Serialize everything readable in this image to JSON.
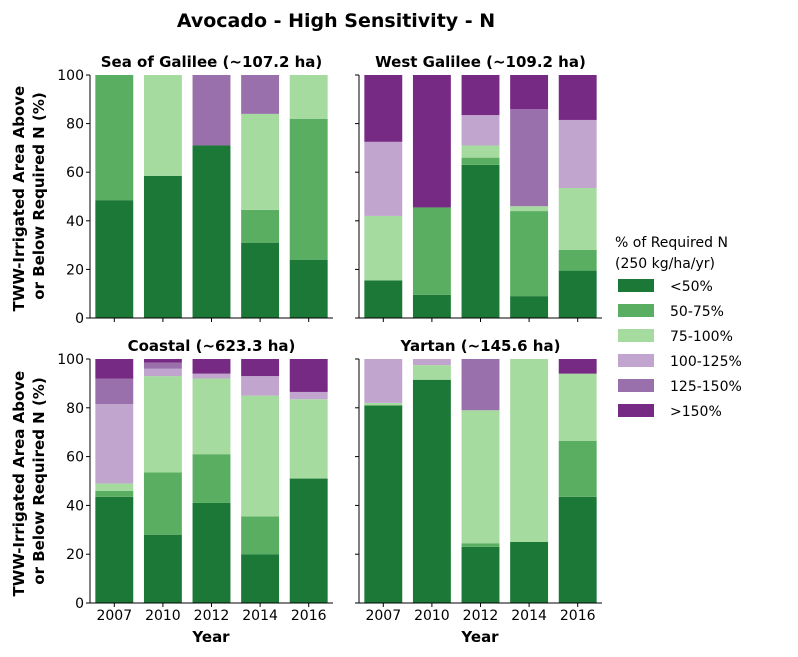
{
  "title": "Avocado - High Sensitivity - N",
  "ylabel_lines": [
    "TWW-Irrigated Area Above",
    "or Below Required N (%)"
  ],
  "xlabel": "Year",
  "legend": {
    "title_lines": [
      "% of Required N",
      "(250 kg/ha/yr)"
    ],
    "entries": [
      "<50%",
      "50-75%",
      "75-100%",
      "100-125%",
      "125-150%",
      ">150%"
    ]
  },
  "colors": [
    "#1b7837",
    "#5aae61",
    "#a6dba0",
    "#c2a5cf",
    "#9970ab",
    "#762a83"
  ],
  "chart_data": [
    {
      "type": "bar",
      "stacked": true,
      "title": "Sea of Galilee (~107.2 ha)",
      "categories": [
        "2007",
        "2010",
        "2012",
        "2014",
        "2016"
      ],
      "ylim": [
        0,
        100
      ],
      "yticks": [
        0,
        20,
        40,
        60,
        80,
        100
      ],
      "series": [
        {
          "name": "<50%",
          "values": [
            48.5,
            58.5,
            71,
            31,
            24
          ]
        },
        {
          "name": "50-75%",
          "values": [
            51.5,
            0,
            0,
            13.5,
            58
          ]
        },
        {
          "name": "75-100%",
          "values": [
            0,
            41.5,
            0,
            39.5,
            18
          ]
        },
        {
          "name": "100-125%",
          "values": [
            0,
            0,
            0,
            0,
            0
          ]
        },
        {
          "name": "125-150%",
          "values": [
            0,
            0,
            29,
            16,
            0
          ]
        },
        {
          "name": ">150%",
          "values": [
            0,
            0,
            0,
            0,
            0
          ]
        }
      ]
    },
    {
      "type": "bar",
      "stacked": true,
      "title": "West Galilee (~109.2 ha)",
      "categories": [
        "2007",
        "2010",
        "2012",
        "2014",
        "2016"
      ],
      "ylim": [
        0,
        100
      ],
      "yticks": [
        0,
        20,
        40,
        60,
        80,
        100
      ],
      "series": [
        {
          "name": "<50%",
          "values": [
            15.5,
            9.5,
            63,
            9,
            19.5
          ]
        },
        {
          "name": "50-75%",
          "values": [
            0,
            36,
            3,
            35,
            8.5
          ]
        },
        {
          "name": "75-100%",
          "values": [
            26.5,
            0,
            5,
            2,
            25.5
          ]
        },
        {
          "name": "100-125%",
          "values": [
            30.5,
            0,
            12.5,
            0,
            28
          ]
        },
        {
          "name": "125-150%",
          "values": [
            0,
            0,
            0,
            40,
            0
          ]
        },
        {
          "name": ">150%",
          "values": [
            27.5,
            54.5,
            16.5,
            14,
            18.5
          ]
        }
      ]
    },
    {
      "type": "bar",
      "stacked": true,
      "title": "Coastal (~623.3 ha)",
      "categories": [
        "2007",
        "2010",
        "2012",
        "2014",
        "2016"
      ],
      "ylim": [
        0,
        100
      ],
      "yticks": [
        0,
        20,
        40,
        60,
        80,
        100
      ],
      "series": [
        {
          "name": "<50%",
          "values": [
            43.5,
            28,
            41,
            20,
            51
          ]
        },
        {
          "name": "50-75%",
          "values": [
            2.5,
            25.5,
            20,
            15.5,
            0
          ]
        },
        {
          "name": "75-100%",
          "values": [
            3,
            39.5,
            31,
            49.5,
            32.5
          ]
        },
        {
          "name": "100-125%",
          "values": [
            32.5,
            3,
            2,
            8,
            3
          ]
        },
        {
          "name": "125-150%",
          "values": [
            10.5,
            2.5,
            0,
            0,
            0
          ]
        },
        {
          "name": ">150%",
          "values": [
            8,
            1.5,
            6,
            7,
            13.5
          ]
        }
      ]
    },
    {
      "type": "bar",
      "stacked": true,
      "title": "Yartan (~145.6 ha)",
      "categories": [
        "2007",
        "2010",
        "2012",
        "2014",
        "2016"
      ],
      "ylim": [
        0,
        100
      ],
      "yticks": [
        0,
        20,
        40,
        60,
        80,
        100
      ],
      "series": [
        {
          "name": "<50%",
          "values": [
            81,
            91.5,
            23,
            25,
            43.5
          ]
        },
        {
          "name": "50-75%",
          "values": [
            0,
            0,
            1.5,
            0,
            23
          ]
        },
        {
          "name": "75-100%",
          "values": [
            1,
            6,
            54.5,
            75,
            27.5
          ]
        },
        {
          "name": "100-125%",
          "values": [
            18,
            2.5,
            0,
            0,
            0
          ]
        },
        {
          "name": "125-150%",
          "values": [
            0,
            0,
            21,
            0,
            0
          ]
        },
        {
          "name": ">150%",
          "values": [
            0,
            0,
            0,
            0,
            6
          ]
        }
      ]
    }
  ]
}
